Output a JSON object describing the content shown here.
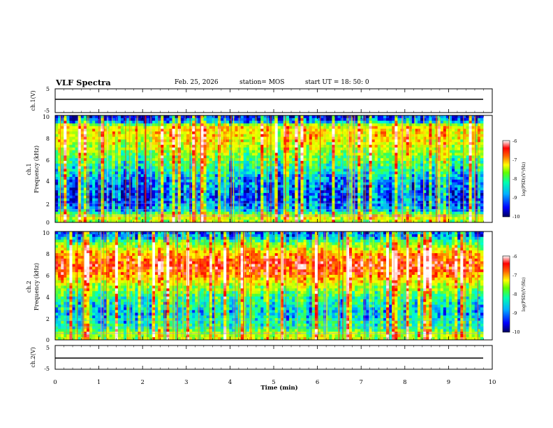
{
  "header": {
    "title": "VLF Spectra",
    "date": "Feb. 25, 2026",
    "station": "station= MOS",
    "start_ut": "start  UT  =   18: 50: 0"
  },
  "chart_data": [
    {
      "type": "line",
      "name": "ch1-waveform",
      "ylabel": "ch.1(V)",
      "ylim": [
        -5,
        5
      ],
      "yticks": [
        "5",
        "-5"
      ],
      "x": [
        0,
        10
      ],
      "y": [
        -1.5,
        -1.5
      ],
      "note": "flat trace near -1.5 V across 0-10 min"
    },
    {
      "type": "heatmap",
      "name": "ch1-spectrogram",
      "ylabel_line1": "ch.1",
      "ylabel_line2": "Frequency (kHz)",
      "ylim": [
        0,
        10
      ],
      "yticks": [
        "0",
        "2",
        "4",
        "6",
        "8",
        "10"
      ],
      "x_range_min": [
        0,
        9.8
      ],
      "band_profile_khz": [
        0.3,
        1.5,
        8.8,
        9.5
      ],
      "intensity_profile": {
        "freq_khz": [
          0,
          0.6,
          1.0,
          1.8,
          2.5,
          4,
          5,
          6.5,
          7.5,
          8.5,
          9.0,
          9.4,
          10
        ],
        "level": [
          0.45,
          0.55,
          0.25,
          0.15,
          0.12,
          0.2,
          0.3,
          0.45,
          0.55,
          0.6,
          0.55,
          0.2,
          0.05
        ]
      },
      "colorbar": {
        "label": "log(PSD)(V²/Hz)",
        "range": [
          -10,
          -6
        ],
        "ticks": [
          "-6",
          "-7",
          "-8",
          "-9",
          "-10"
        ]
      }
    },
    {
      "type": "heatmap",
      "name": "ch2-spectrogram",
      "ylabel_line1": "ch.2",
      "ylabel_line2": "Frequency (kHz)",
      "ylim": [
        0,
        10
      ],
      "yticks": [
        "0",
        "2",
        "4",
        "6",
        "8",
        "10"
      ],
      "x_range_min": [
        0,
        9.8
      ],
      "intensity_profile": {
        "freq_khz": [
          0,
          0.6,
          1.0,
          1.8,
          2.5,
          4,
          5,
          6,
          7,
          8,
          9,
          9.6,
          10
        ],
        "level": [
          0.5,
          0.5,
          0.35,
          0.3,
          0.25,
          0.35,
          0.5,
          0.7,
          0.8,
          0.65,
          0.4,
          0.2,
          0.15
        ]
      },
      "colorbar": {
        "label": "log(PSD)(V²/Hz)",
        "range": [
          -10,
          -6
        ],
        "ticks": [
          "-6",
          "-7",
          "-8",
          "-9",
          "-10"
        ]
      }
    },
    {
      "type": "line",
      "name": "ch2-waveform",
      "ylabel": "ch.2(V)",
      "ylim": [
        -5,
        5
      ],
      "yticks": [
        "5",
        "-5"
      ],
      "x": [
        0,
        10
      ],
      "y": [
        -1.5,
        -1.5
      ],
      "note": "flat trace near -1.5 V across 0-10 min"
    }
  ],
  "xaxis": {
    "label": "Time  (min)",
    "range": [
      0,
      10
    ],
    "ticks": [
      "0",
      "1",
      "2",
      "3",
      "4",
      "5",
      "6",
      "7",
      "8",
      "9",
      "10"
    ]
  },
  "colors": {
    "colormap": [
      "#000080",
      "#0000ff",
      "#00a0ff",
      "#00ffd0",
      "#40ff40",
      "#c8ff00",
      "#ffff00",
      "#ff8000",
      "#ff0000",
      "#ffd0d0",
      "#ffffff"
    ],
    "trace": "#000000"
  }
}
